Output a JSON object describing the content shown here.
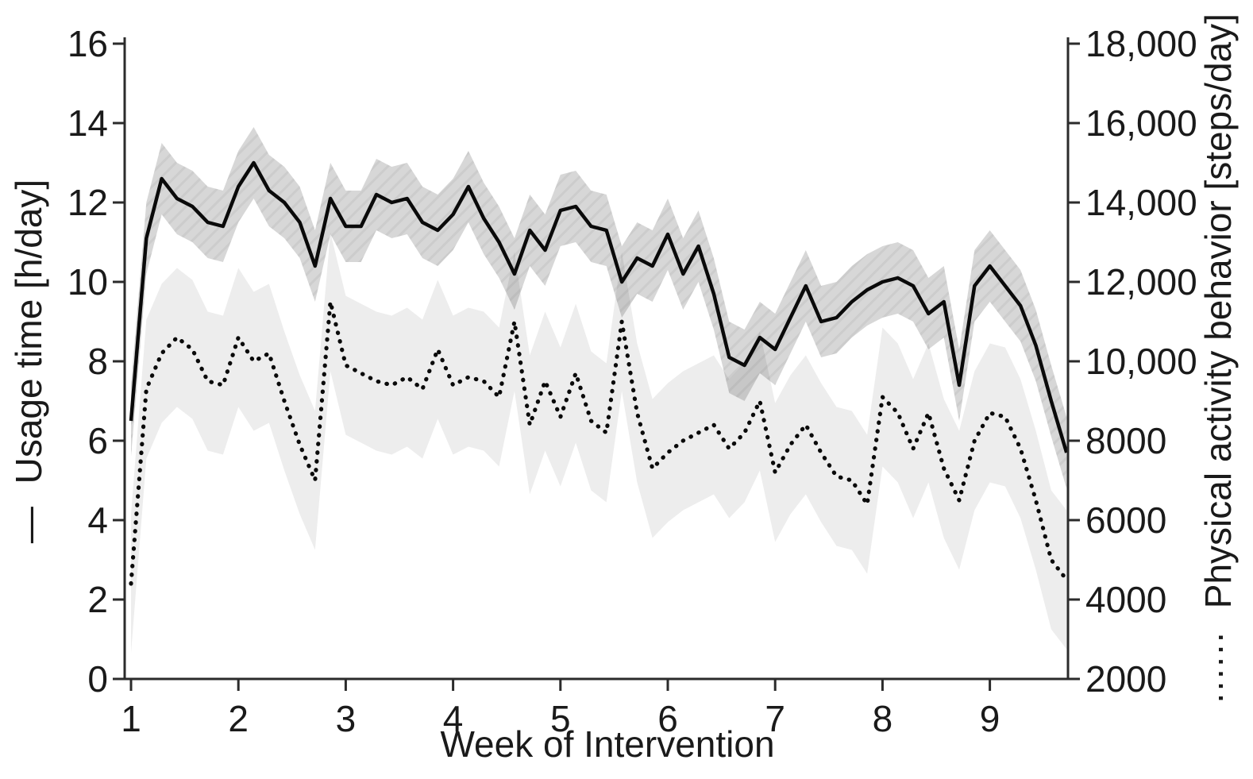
{
  "chart_data": {
    "type": "line",
    "title": "",
    "xlabel": "Week of Intervention",
    "x_ticks": [
      "1",
      "2",
      "3",
      "4",
      "5",
      "6",
      "7",
      "8",
      "9"
    ],
    "x_tick_values": [
      1,
      2,
      3,
      4,
      5,
      6,
      7,
      8,
      9
    ],
    "x_range_weeks": [
      1,
      9.72
    ],
    "days_per_week": 7,
    "n_points": 62,
    "grid": "off",
    "background": "#ffffff",
    "line_color": "#0a0a0a",
    "band_light_color": "#ededed",
    "band_dark_color": "rgba(0,0,0,0.155)",
    "y_left": {
      "label": "Usage time [h/day]",
      "legend_marker": "—",
      "range": [
        0,
        16
      ],
      "tick_values": [
        0,
        2,
        4,
        6,
        8,
        10,
        12,
        14,
        16
      ],
      "tick_labels": [
        "0",
        "2",
        "4",
        "6",
        "8",
        "10",
        "12",
        "14",
        "16"
      ]
    },
    "y_right": {
      "label": "Physical activity behavior [steps/day]",
      "legend_marker": "······",
      "range": [
        2000,
        18000
      ],
      "tick_values": [
        2000,
        4000,
        6000,
        8000,
        10000,
        12000,
        14000,
        16000,
        18000
      ],
      "tick_labels": [
        "2000",
        "4000",
        "6000",
        "8000",
        "10,000",
        "12,000",
        "14,000",
        "16,000",
        "18,000"
      ]
    },
    "series": [
      {
        "name": "Usage time",
        "axis": "left",
        "style": "solid",
        "band_halfwidth": 0.9,
        "values": [
          6.5,
          11.1,
          12.6,
          12.1,
          11.9,
          11.5,
          11.4,
          12.4,
          13.0,
          12.3,
          12.0,
          11.5,
          10.4,
          12.1,
          11.4,
          11.4,
          12.2,
          12.0,
          12.1,
          11.5,
          11.3,
          11.7,
          12.4,
          11.6,
          11.0,
          10.2,
          11.3,
          10.8,
          11.8,
          11.9,
          11.4,
          11.3,
          10.0,
          10.6,
          10.4,
          11.2,
          10.2,
          10.9,
          9.7,
          8.1,
          7.9,
          8.6,
          8.3,
          9.1,
          9.9,
          9.0,
          9.1,
          9.5,
          9.8,
          10.0,
          10.1,
          9.9,
          9.2,
          9.5,
          7.4,
          9.9,
          10.4,
          9.9,
          9.4,
          8.4,
          7.0,
          5.7
        ]
      },
      {
        "name": "Physical activity behavior",
        "axis": "right",
        "style": "dotted",
        "band_halfwidth": 1750,
        "values": [
          4400,
          9300,
          10200,
          10600,
          10300,
          9500,
          9400,
          10600,
          10000,
          10200,
          9000,
          7900,
          7000,
          11500,
          9900,
          9700,
          9500,
          9400,
          9600,
          9300,
          10300,
          9400,
          9600,
          9500,
          9100,
          11000,
          8400,
          9500,
          8600,
          9700,
          8500,
          8200,
          11000,
          8700,
          7300,
          7700,
          8000,
          8200,
          8400,
          7800,
          8200,
          9000,
          7200,
          7900,
          8400,
          7700,
          7100,
          7000,
          6400,
          9100,
          8700,
          7800,
          8700,
          7300,
          6500,
          8000,
          8700,
          8600,
          7800,
          6500,
          5000,
          4500
        ]
      }
    ]
  }
}
